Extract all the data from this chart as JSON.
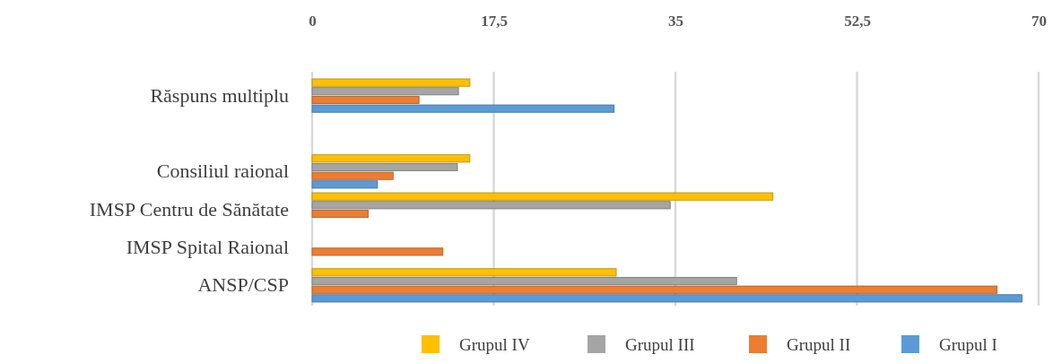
{
  "chart_data": {
    "type": "bar",
    "orientation": "horizontal",
    "categories": [
      "Răspuns multiplu",
      null,
      "Consiliul raional",
      "IMSP Centru de Sănătate",
      "IMSP Spital Raional",
      "ANSP/CSP"
    ],
    "series": [
      {
        "name": "Grupul IV",
        "color": "#ffc000",
        "values": [
          15.2,
          null,
          15.2,
          44.4,
          0,
          29.3
        ]
      },
      {
        "name": "Grupul III",
        "color": "#a5a5a5",
        "values": [
          14.1,
          null,
          14,
          34.5,
          0,
          40.9
        ]
      },
      {
        "name": "Grupul II",
        "color": "#ed7d31",
        "values": [
          10.3,
          null,
          7.8,
          5.4,
          12.6,
          66
        ]
      },
      {
        "name": "Grupul I",
        "color": "#5b9bd5",
        "values": [
          29.1,
          null,
          6.3,
          0,
          0,
          68.4
        ]
      }
    ],
    "xlim": [
      0,
      70
    ],
    "xticks": [
      0,
      {
        "value": 17.5,
        "label": "17,5"
      },
      35,
      {
        "value": 52.5,
        "label": "52,5"
      },
      70
    ],
    "grid": "x",
    "legend": "bottom"
  }
}
